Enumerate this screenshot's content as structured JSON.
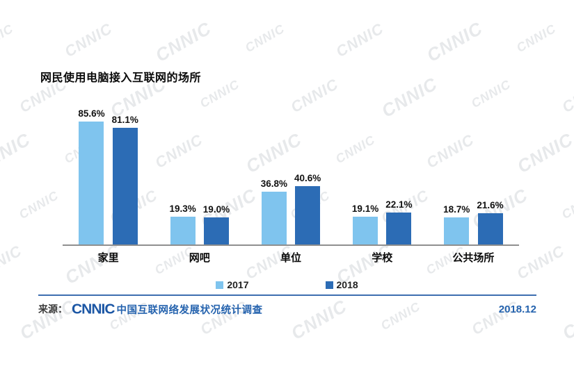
{
  "page": {
    "watermark_text": "CNNIC"
  },
  "chart_data": {
    "type": "bar",
    "title": "网民使用电脑接入互联网的场所",
    "categories": [
      "家里",
      "网吧",
      "单位",
      "学校",
      "公共场所"
    ],
    "series": [
      {
        "name": "2017",
        "color": "#7fc4ee",
        "values": [
          85.6,
          19.3,
          36.8,
          19.1,
          18.7
        ]
      },
      {
        "name": "2018",
        "color": "#2c6cb5",
        "values": [
          81.1,
          19.0,
          40.6,
          22.1,
          21.6
        ]
      }
    ],
    "value_suffix": "%",
    "xlabel": "",
    "ylabel": "",
    "ylim": [
      0,
      100
    ],
    "grid": false,
    "legend_position": "bottom"
  },
  "footer": {
    "source_label": "来源：",
    "logo_text": "CNNIC",
    "source_text": "中国互联网络发展状况统计调查",
    "date": "2018.12"
  }
}
